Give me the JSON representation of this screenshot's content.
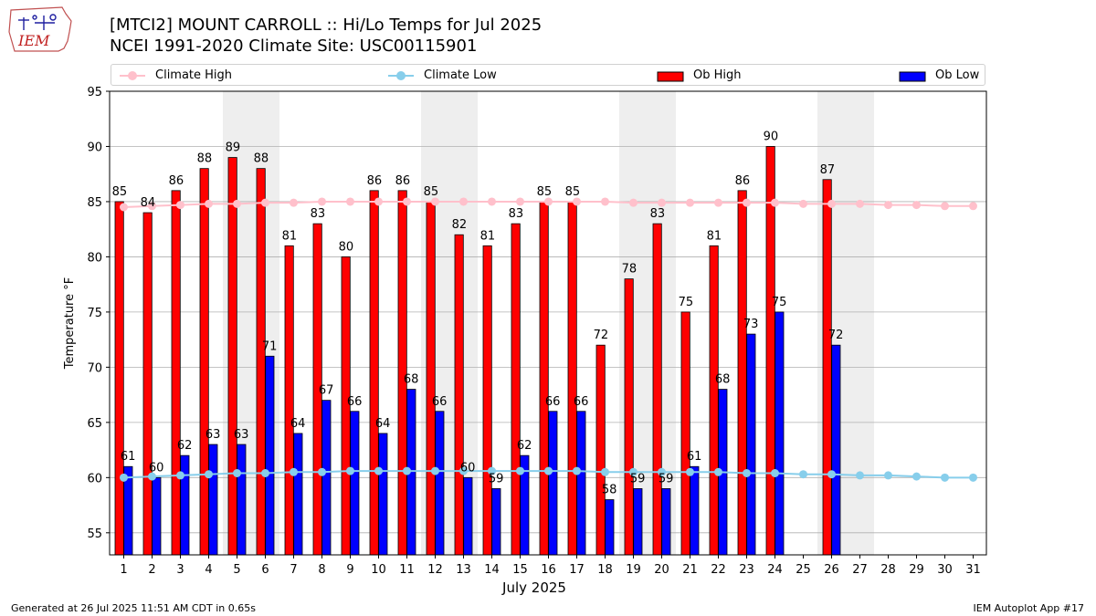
{
  "header": {
    "title_line1": "[MTCI2] MOUNT CARROLL :: Hi/Lo Temps for Jul 2025",
    "title_line2": "NCEI 1991-2020 Climate Site: USC00115901",
    "logo_text": "IEM"
  },
  "footer": {
    "left": "Generated at 26 Jul 2025 11:51 AM CDT in 0.65s",
    "right": "IEM Autoplot App #17"
  },
  "legend": {
    "climate_high": "Climate High",
    "climate_low": "Climate Low",
    "ob_high": "Ob High",
    "ob_low": "Ob Low"
  },
  "colors": {
    "ob_high": "#ff0000",
    "ob_low": "#0000ff",
    "climate_high": "#ffc0cb",
    "climate_low": "#87ceeb",
    "weekend_shade": "#eeeeee",
    "grid": "#b0b0b0"
  },
  "chart_data": {
    "type": "bar",
    "xlabel": "July 2025",
    "ylabel": "Temperature °F",
    "ylim": [
      53,
      95
    ],
    "yticks": [
      55,
      60,
      65,
      70,
      75,
      80,
      85,
      90,
      95
    ],
    "grid": "horizontal",
    "legend_position": "top",
    "categories": [
      1,
      2,
      3,
      4,
      5,
      6,
      7,
      8,
      9,
      10,
      11,
      12,
      13,
      14,
      15,
      16,
      17,
      18,
      19,
      20,
      21,
      22,
      23,
      24,
      25,
      26,
      27,
      28,
      29,
      30,
      31
    ],
    "weekend_shading_days": [
      [
        5,
        6
      ],
      [
        12,
        13
      ],
      [
        19,
        20
      ],
      [
        26,
        27
      ]
    ],
    "series": [
      {
        "name": "Ob High",
        "kind": "bar",
        "values": [
          85,
          84,
          86,
          88,
          89,
          88,
          81,
          83,
          80,
          86,
          86,
          85,
          82,
          81,
          83,
          85,
          85,
          72,
          78,
          83,
          75,
          81,
          86,
          90,
          null,
          87,
          null,
          null,
          null,
          null,
          null
        ]
      },
      {
        "name": "Ob Low",
        "kind": "bar",
        "values": [
          61,
          60,
          62,
          63,
          63,
          71,
          64,
          67,
          66,
          64,
          68,
          66,
          60,
          59,
          62,
          66,
          66,
          58,
          59,
          59,
          61,
          68,
          73,
          75,
          null,
          72,
          null,
          null,
          null,
          null,
          null
        ]
      },
      {
        "name": "Climate High",
        "kind": "line",
        "values": [
          84.5,
          84.6,
          84.7,
          84.8,
          84.8,
          84.9,
          84.9,
          85.0,
          85.0,
          85.0,
          85.0,
          85.0,
          85.0,
          85.0,
          85.0,
          85.0,
          85.0,
          85.0,
          84.9,
          84.9,
          84.9,
          84.9,
          84.9,
          84.9,
          84.8,
          84.8,
          84.8,
          84.7,
          84.7,
          84.6,
          84.6
        ]
      },
      {
        "name": "Climate Low",
        "kind": "line",
        "values": [
          60.0,
          60.1,
          60.2,
          60.3,
          60.4,
          60.4,
          60.5,
          60.5,
          60.6,
          60.6,
          60.6,
          60.6,
          60.6,
          60.6,
          60.6,
          60.6,
          60.6,
          60.5,
          60.5,
          60.5,
          60.5,
          60.5,
          60.4,
          60.4,
          60.3,
          60.3,
          60.2,
          60.2,
          60.1,
          60.0,
          60.0
        ]
      }
    ]
  }
}
